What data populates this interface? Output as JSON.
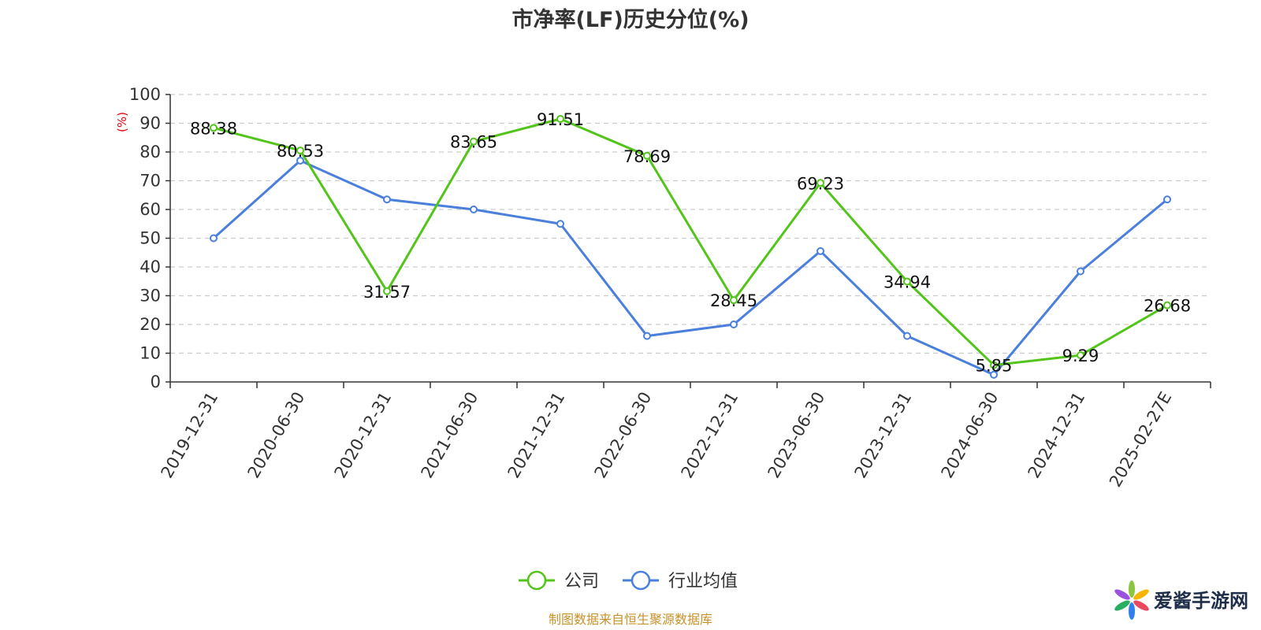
{
  "chart_data": {
    "type": "line",
    "title": "市净率(LF)历史分位(%)",
    "ylabel": "(%)",
    "ylim": [
      0,
      100
    ],
    "yticks": [
      0,
      10,
      20,
      30,
      40,
      50,
      60,
      70,
      80,
      90,
      100
    ],
    "grid": true,
    "legend_position": "bottom-center",
    "categories": [
      "2019-12-31",
      "2020-06-30",
      "2020-12-31",
      "2021-06-30",
      "2021-12-31",
      "2022-06-30",
      "2022-12-31",
      "2023-06-30",
      "2023-12-31",
      "2024-06-30",
      "2024-12-31",
      "2025-02-27E"
    ],
    "series": [
      {
        "name": "公司",
        "color": "#52c41a",
        "values": [
          88.38,
          80.53,
          31.57,
          83.65,
          91.51,
          78.69,
          28.45,
          69.23,
          34.94,
          5.85,
          9.29,
          26.68
        ],
        "labels": [
          "88.38",
          "80.53",
          "31.57",
          "83.65",
          "91.51",
          "78.69",
          "28.45",
          "69.23",
          "34.94",
          "5.85",
          "9.29",
          "26.68"
        ]
      },
      {
        "name": "行业均值",
        "color": "#4a7fdc",
        "values": [
          50,
          77,
          63.5,
          60,
          55,
          16,
          20,
          45.5,
          16,
          2.5,
          38.5,
          63.5
        ]
      }
    ],
    "ylabel_color": "#e8000b"
  },
  "footer": {
    "source": "制图数据来自恒生聚源数据库",
    "source_color": "#c8922a"
  },
  "watermark": {
    "text": "爱酱手游网"
  }
}
